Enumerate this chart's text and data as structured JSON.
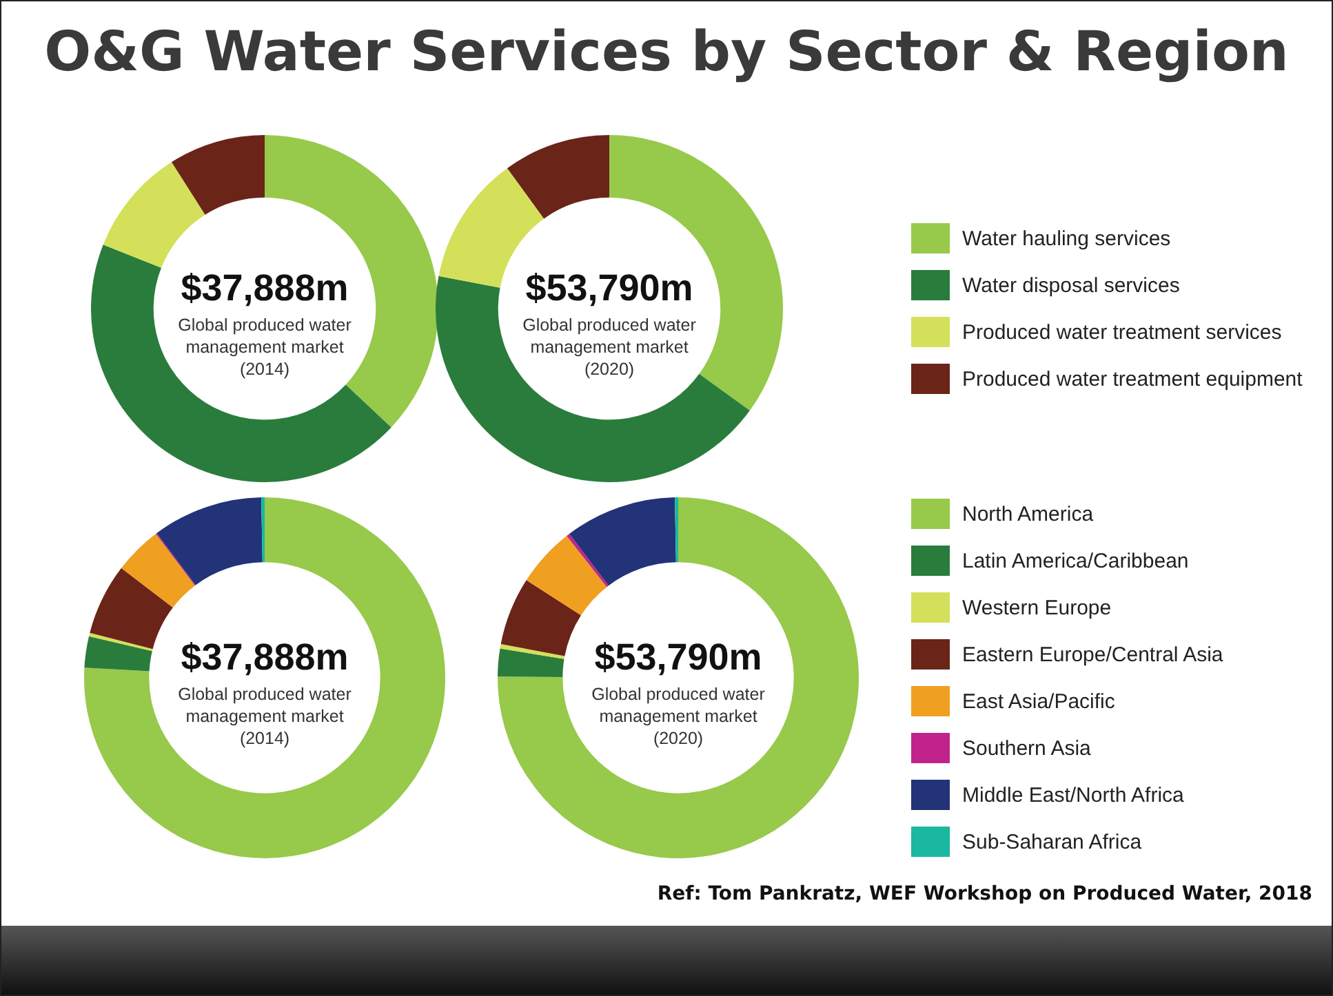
{
  "chart_data": [
    {
      "type": "donut",
      "title": "O&G Water Services by Sector & Region",
      "categories": [
        "Water hauling services",
        "Water disposal services",
        "Produced water treatment services",
        "Produced water treatment equipment"
      ],
      "colors": [
        "#97c94a",
        "#2a7c3c",
        "#d4e05a",
        "#6b2418"
      ],
      "legend": "right",
      "series": [
        {
          "values": [
            37,
            44,
            10,
            9
          ]
        },
        {
          "values": [
            35,
            43,
            12,
            10
          ]
        }
      ],
      "annotations": [
        "$37,888m",
        "Global produced water management market (2014)",
        "$53,790m",
        "Global produced water management market (2020)"
      ]
    },
    {
      "type": "donut",
      "categories": [
        "North America",
        "Latin America/Caribbean",
        "Western Europe",
        "Eastern Europe/Central Asia",
        "East Asia/Pacific",
        "Southern Asia",
        "Middle East/North Africa",
        "Sub-Saharan Africa"
      ],
      "colors": [
        "#97c94a",
        "#2a7c3c",
        "#d4e05a",
        "#6b2418",
        "#f0a020",
        "#c0248c",
        "#223378",
        "#1ab8a0"
      ],
      "legend": "right",
      "series": [
        {
          "values": [
            75.9,
            2.8,
            0.3,
            6.4,
            4.3,
            0.1,
            9.9,
            0.3
          ]
        },
        {
          "values": [
            75.1,
            2.5,
            0.4,
            6.1,
            5.3,
            0.3,
            10,
            0.3
          ]
        }
      ],
      "annotations": [
        "$37,888m",
        "Global produced water management market (2014)",
        "$53,790m",
        "Global produced water management market (2020)",
        "Ref: Tom Pankratz, WEF Workshop on Produced Water, 2018"
      ]
    }
  ]
}
